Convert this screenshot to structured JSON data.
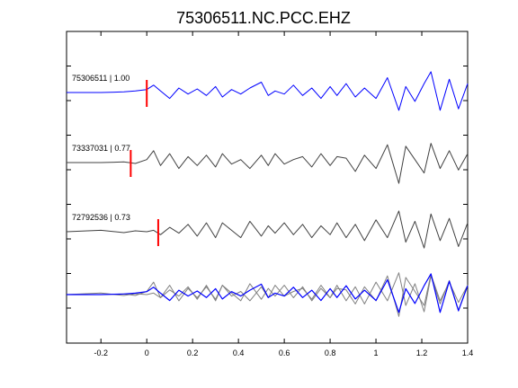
{
  "chart_data": {
    "type": "line",
    "title": "75306511.NC.PCC.EHZ",
    "xlabel": "",
    "ylabel": "",
    "xlim": [
      -0.35,
      1.4
    ],
    "xticks": [
      -0.2,
      0,
      0.2,
      0.4,
      0.6,
      0.8,
      1,
      1.2,
      1.4
    ],
    "xtick_labels": [
      "-0.2",
      "0",
      "0.2",
      "0.4",
      "0.6",
      "0.8",
      "1",
      "1.2",
      "1.4"
    ],
    "grid": false,
    "colors": {
      "reference": "#0000ff",
      "trace": "#404040",
      "overlay": "#808080",
      "pick": "#ff0000"
    },
    "traces": [
      {
        "label": "75306511 | 1.00",
        "id": "75306511",
        "correlation": 1.0,
        "color": "#0000ff",
        "pick_time": 0.0,
        "x": [
          -0.35,
          -0.2,
          -0.1,
          -0.05,
          0.0,
          0.03,
          0.06,
          0.1,
          0.14,
          0.18,
          0.22,
          0.26,
          0.3,
          0.33,
          0.37,
          0.41,
          0.45,
          0.5,
          0.53,
          0.56,
          0.6,
          0.64,
          0.68,
          0.72,
          0.76,
          0.8,
          0.83,
          0.87,
          0.91,
          0.95,
          1.0,
          1.05,
          1.1,
          1.13,
          1.17,
          1.21,
          1.24,
          1.28,
          1.32,
          1.36,
          1.4
        ],
        "y": [
          0.0,
          0.0,
          0.02,
          0.05,
          0.1,
          0.25,
          0.05,
          -0.2,
          0.15,
          -0.05,
          0.12,
          -0.1,
          0.2,
          -0.15,
          0.1,
          -0.05,
          0.15,
          0.35,
          -0.1,
          0.05,
          -0.05,
          0.25,
          -0.1,
          0.15,
          -0.2,
          0.2,
          -0.1,
          0.3,
          -0.15,
          0.15,
          -0.2,
          0.5,
          -0.6,
          0.2,
          -0.3,
          0.3,
          0.7,
          -0.6,
          0.45,
          -0.55,
          0.3
        ]
      },
      {
        "label": "73337031 | 0.77",
        "id": "73337031",
        "correlation": 0.77,
        "color": "#404040",
        "pick_time": -0.07,
        "x": [
          -0.35,
          -0.2,
          -0.1,
          -0.05,
          0.0,
          0.03,
          0.06,
          0.1,
          0.14,
          0.18,
          0.22,
          0.26,
          0.3,
          0.33,
          0.37,
          0.41,
          0.45,
          0.5,
          0.53,
          0.56,
          0.6,
          0.64,
          0.68,
          0.72,
          0.76,
          0.8,
          0.83,
          0.87,
          0.91,
          0.95,
          1.0,
          1.05,
          1.1,
          1.13,
          1.17,
          1.21,
          1.24,
          1.28,
          1.32,
          1.36,
          1.4
        ],
        "y": [
          0.0,
          0.0,
          0.02,
          -0.03,
          0.1,
          0.4,
          -0.1,
          0.3,
          -0.2,
          0.2,
          -0.1,
          0.25,
          -0.15,
          0.3,
          -0.05,
          0.1,
          -0.2,
          0.25,
          -0.1,
          0.3,
          -0.05,
          0.1,
          0.2,
          -0.15,
          0.3,
          -0.1,
          0.2,
          0.15,
          -0.3,
          0.25,
          -0.2,
          0.6,
          -0.7,
          0.55,
          0.1,
          -0.35,
          0.65,
          -0.2,
          0.4,
          -0.25,
          0.3
        ]
      },
      {
        "label": "72792536 | 0.73",
        "id": "72792536",
        "correlation": 0.73,
        "color": "#404040",
        "pick_time": 0.05,
        "x": [
          -0.35,
          -0.2,
          -0.1,
          -0.05,
          0.0,
          0.03,
          0.06,
          0.1,
          0.14,
          0.18,
          0.22,
          0.26,
          0.3,
          0.33,
          0.37,
          0.41,
          0.45,
          0.5,
          0.53,
          0.56,
          0.6,
          0.64,
          0.68,
          0.72,
          0.76,
          0.8,
          0.83,
          0.87,
          0.91,
          0.95,
          1.0,
          1.05,
          1.1,
          1.13,
          1.17,
          1.21,
          1.24,
          1.28,
          1.32,
          1.36,
          1.4
        ],
        "y": [
          0.0,
          0.05,
          -0.03,
          0.03,
          0.0,
          0.05,
          -0.1,
          0.15,
          -0.05,
          0.25,
          -0.15,
          0.3,
          -0.2,
          0.3,
          0.05,
          -0.2,
          0.35,
          -0.15,
          0.2,
          -0.05,
          0.3,
          -0.1,
          0.25,
          -0.2,
          0.2,
          -0.1,
          0.3,
          -0.2,
          0.25,
          -0.3,
          0.4,
          -0.2,
          0.7,
          -0.35,
          0.35,
          -0.55,
          0.6,
          -0.3,
          0.45,
          -0.5,
          0.3
        ]
      }
    ]
  }
}
